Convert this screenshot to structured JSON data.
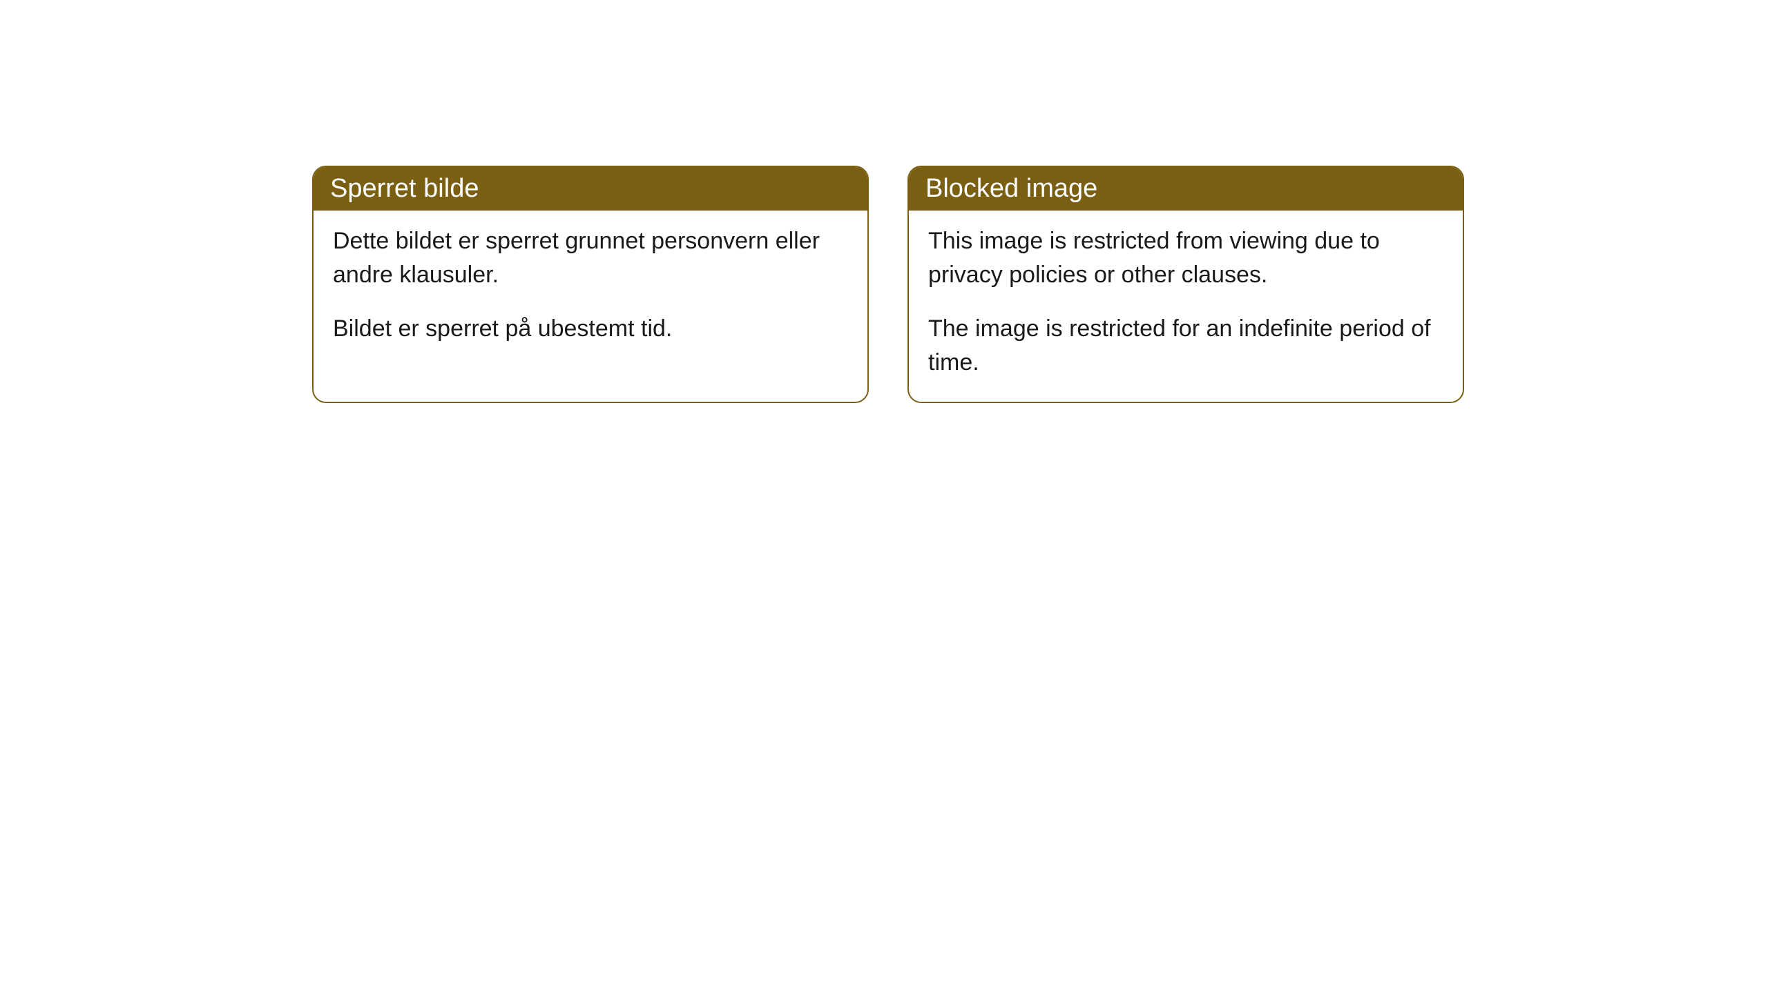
{
  "cards": [
    {
      "title": "Sperret bilde",
      "paragraph1": "Dette bildet er sperret grunnet personvern eller andre klausuler.",
      "paragraph2": "Bildet er sperret på ubestemt tid."
    },
    {
      "title": "Blocked image",
      "paragraph1": "This image is restricted from viewing due to privacy policies or other clauses.",
      "paragraph2": "The image is restricted for an indefinite period of time."
    }
  ],
  "styling": {
    "header_bg_color": "#7a5e12",
    "header_text_color": "#ffffff",
    "border_color": "#7a5e12",
    "body_bg_color": "#ffffff",
    "body_text_color": "#1a1a1a",
    "border_radius": 20,
    "header_fontsize": 38,
    "body_fontsize": 34
  }
}
